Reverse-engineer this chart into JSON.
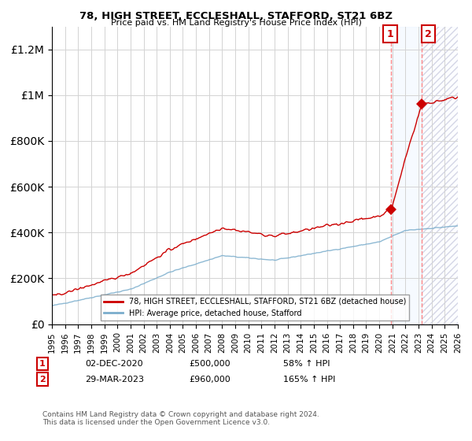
{
  "title": "78, HIGH STREET, ECCLESHALL, STAFFORD, ST21 6BZ",
  "subtitle": "Price paid vs. HM Land Registry's House Price Index (HPI)",
  "footer": "Contains HM Land Registry data © Crown copyright and database right 2024.\nThis data is licensed under the Open Government Licence v3.0.",
  "legend_line1": "78, HIGH STREET, ECCLESHALL, STAFFORD, ST21 6BZ (detached house)",
  "legend_line2": "HPI: Average price, detached house, Stafford",
  "annotation1": {
    "num": "1",
    "date": "02-DEC-2020",
    "price": "£500,000",
    "pct": "58% ↑ HPI"
  },
  "annotation2": {
    "num": "2",
    "date": "29-MAR-2023",
    "price": "£960,000",
    "pct": "165% ↑ HPI"
  },
  "sale1_year": 2020.92,
  "sale1_price": 500000,
  "sale2_year": 2023.24,
  "sale2_price": 960000,
  "ylim": [
    0,
    1300000
  ],
  "xlim_start": 1995,
  "xlim_end": 2026,
  "red_color": "#cc0000",
  "blue_color": "#7aadcc",
  "shaded_color": "#ddeeff"
}
